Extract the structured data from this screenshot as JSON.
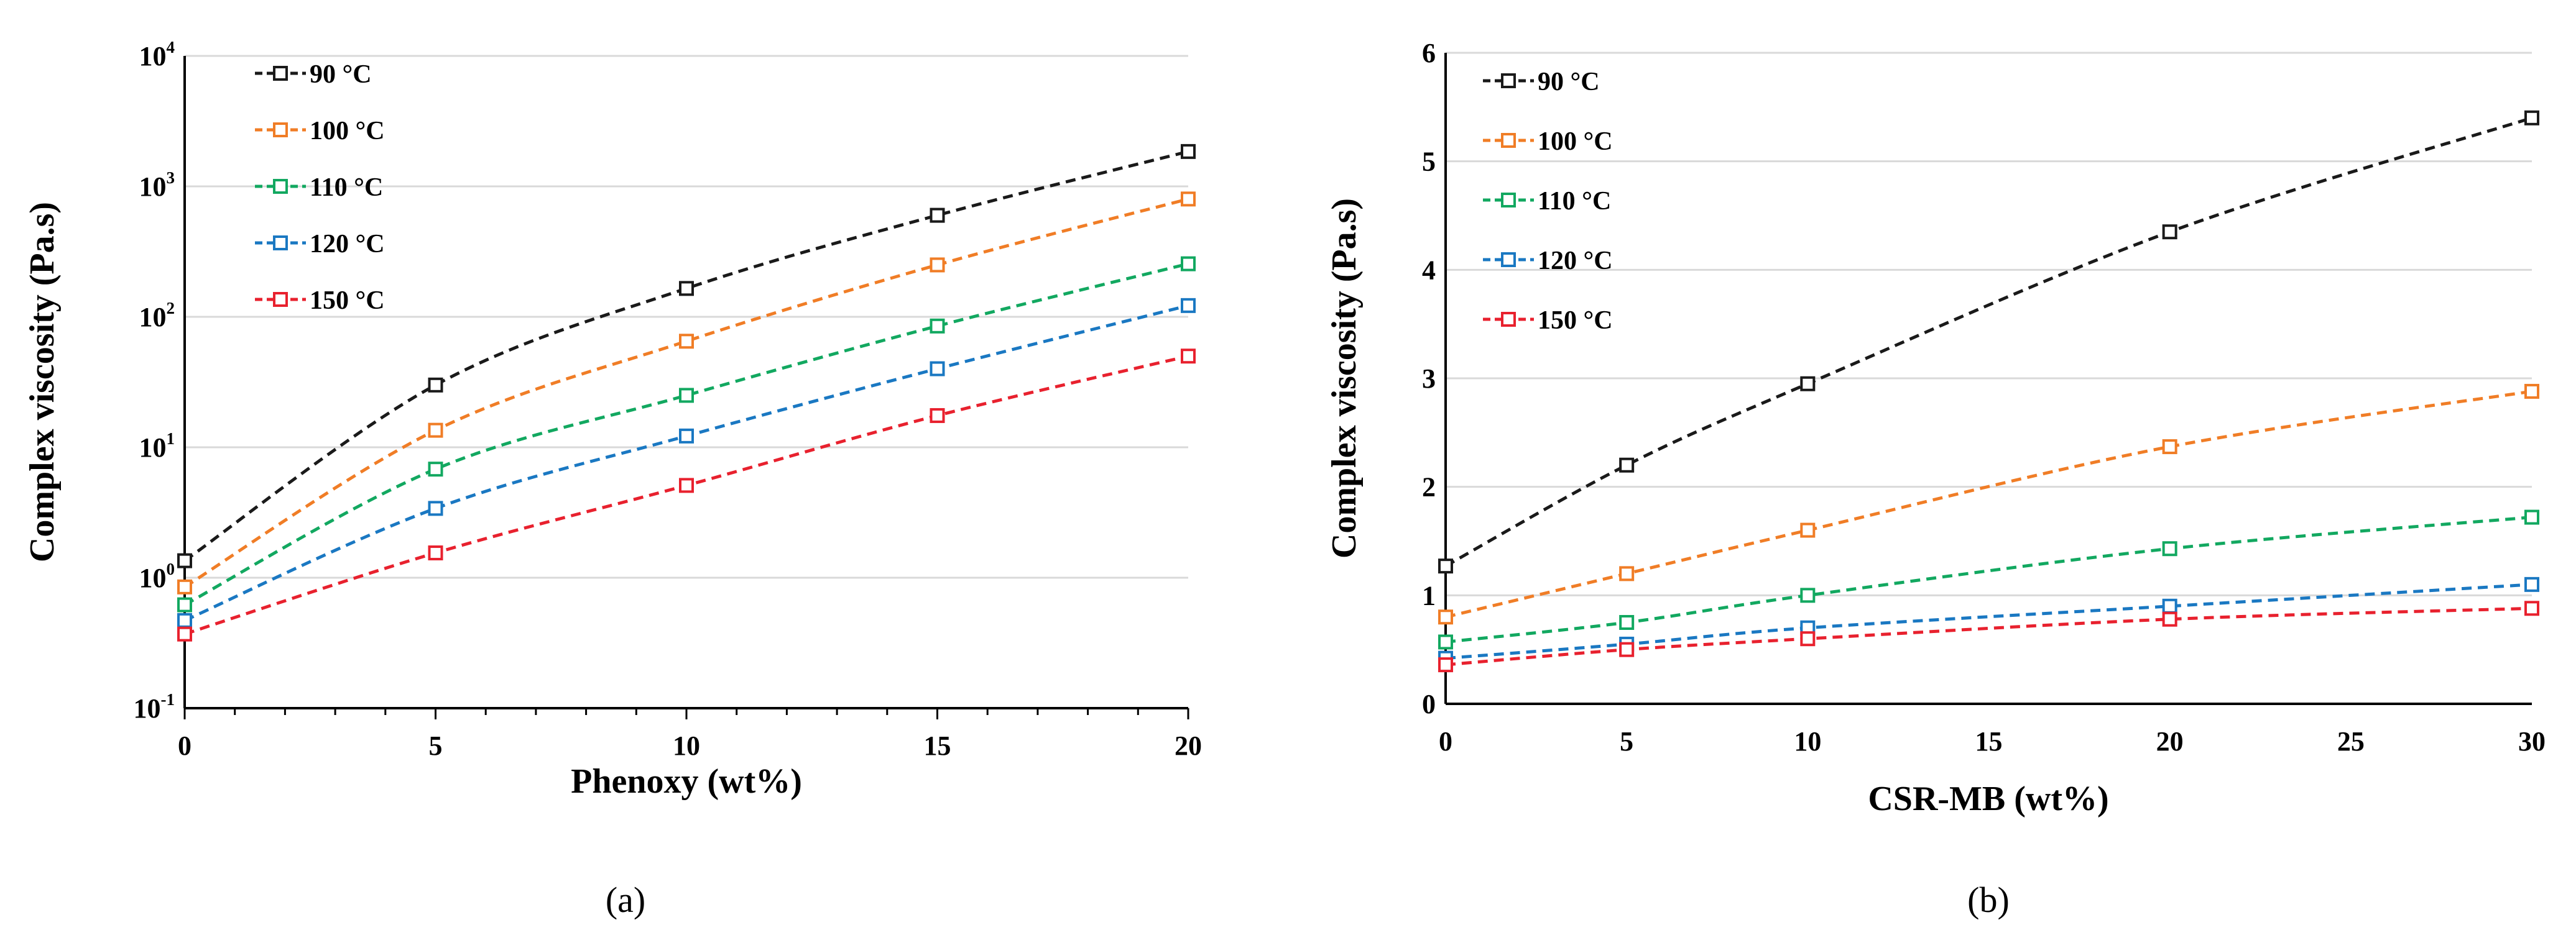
{
  "chart_data": [
    {
      "type": "line",
      "panel_label": "(a)",
      "xlabel": "Phenoxy (wt%)",
      "ylabel": "Complex viscosity (Pa.s)",
      "y_scale": "log",
      "xlim": [
        0,
        20
      ],
      "ylim": [
        0.1,
        10000
      ],
      "x_ticks": [
        0,
        5,
        10,
        15,
        20
      ],
      "y_ticks": [
        {
          "value": 0.1,
          "base": "10",
          "exp": "-1"
        },
        {
          "value": 1,
          "base": "10",
          "exp": "0"
        },
        {
          "value": 10,
          "base": "10",
          "exp": "1"
        },
        {
          "value": 100,
          "base": "10",
          "exp": "2"
        },
        {
          "value": 1000,
          "base": "10",
          "exp": "3"
        },
        {
          "value": 10000,
          "base": "10",
          "exp": "4"
        }
      ],
      "grid": true,
      "legend_position": "top-left",
      "x": [
        0,
        5,
        10,
        15,
        20
      ],
      "series": [
        {
          "name": "90 °C",
          "color": "#1a1a1a",
          "values": [
            1.35,
            30,
            165,
            600,
            1850
          ]
        },
        {
          "name": "100 °C",
          "color": "#f07d26",
          "values": [
            0.85,
            13.5,
            65,
            250,
            800
          ]
        },
        {
          "name": "110 °C",
          "color": "#12a860",
          "values": [
            0.62,
            6.8,
            25,
            85,
            255
          ]
        },
        {
          "name": "120 °C",
          "color": "#1a78c2",
          "values": [
            0.47,
            3.4,
            12.2,
            40,
            122
          ]
        },
        {
          "name": "150 °C",
          "color": "#e8212e",
          "values": [
            0.37,
            1.55,
            5.1,
            17.5,
            50
          ]
        }
      ]
    },
    {
      "type": "line",
      "panel_label": "(b)",
      "xlabel": "CSR-MB (wt%)",
      "ylabel": "Complex viscosity (Pa.s)",
      "y_scale": "linear",
      "xlim": [
        0,
        30
      ],
      "ylim": [
        0,
        6
      ],
      "x_ticks": [
        0,
        5,
        10,
        15,
        20,
        25,
        30
      ],
      "y_ticks": [
        0,
        1,
        2,
        3,
        4,
        5,
        6
      ],
      "grid": true,
      "legend_position": "top-left",
      "x": [
        0,
        5,
        10,
        20,
        30
      ],
      "series": [
        {
          "name": "90 °C",
          "color": "#1a1a1a",
          "values": [
            1.27,
            2.2,
            2.95,
            4.35,
            5.4
          ]
        },
        {
          "name": "100 °C",
          "color": "#f07d26",
          "values": [
            0.8,
            1.2,
            1.6,
            2.37,
            2.88
          ]
        },
        {
          "name": "110 °C",
          "color": "#12a860",
          "values": [
            0.57,
            0.75,
            1.0,
            1.43,
            1.72
          ]
        },
        {
          "name": "120 °C",
          "color": "#1a78c2",
          "values": [
            0.42,
            0.55,
            0.7,
            0.9,
            1.1
          ]
        },
        {
          "name": "150 °C",
          "color": "#e8212e",
          "values": [
            0.36,
            0.5,
            0.6,
            0.78,
            0.88
          ]
        }
      ]
    }
  ]
}
